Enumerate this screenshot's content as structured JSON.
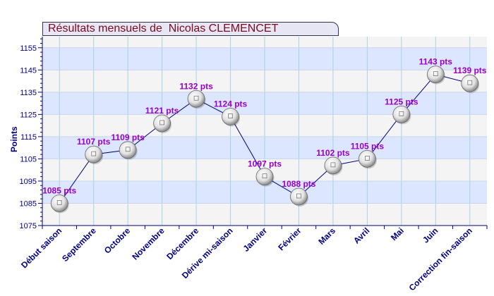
{
  "chart_data": {
    "type": "line",
    "title": "Résultats mensuels de  Nicolas CLEMENCET",
    "ylabel": "Points",
    "xlabel": "",
    "ylim": [
      1075,
      1160
    ],
    "yticks": [
      1075,
      1085,
      1095,
      1105,
      1115,
      1125,
      1135,
      1145,
      1155
    ],
    "grid": true,
    "categories": [
      "Début saison",
      "Septembre",
      "Octobre",
      "Novembre",
      "Décembre",
      "Dérive mi-saison",
      "Janvier",
      "Février",
      "Mars",
      "Avril",
      "Mai",
      "Juin",
      "Correction fin-saison"
    ],
    "values": [
      1085,
      1107,
      1109,
      1121,
      1132,
      1124,
      1097,
      1088,
      1102,
      1105,
      1125,
      1143,
      1139
    ],
    "data_labels": [
      "1085 pts",
      "1107 pts",
      "1109 pts",
      "1121 pts",
      "1132 pts",
      "1124 pts",
      "1097 pts",
      "1088 pts",
      "1102 pts",
      "1105 pts",
      "1125 pts",
      "1143 pts",
      "1139 pts"
    ],
    "colors": {
      "title": "#7a0a1e",
      "axis_labels": "#000080",
      "data_labels": "#9900cc",
      "line": "#000080",
      "band_blue": "#dde6ff",
      "band_grey": "#f4f4f4",
      "gridline": "#a8d0e8"
    }
  }
}
